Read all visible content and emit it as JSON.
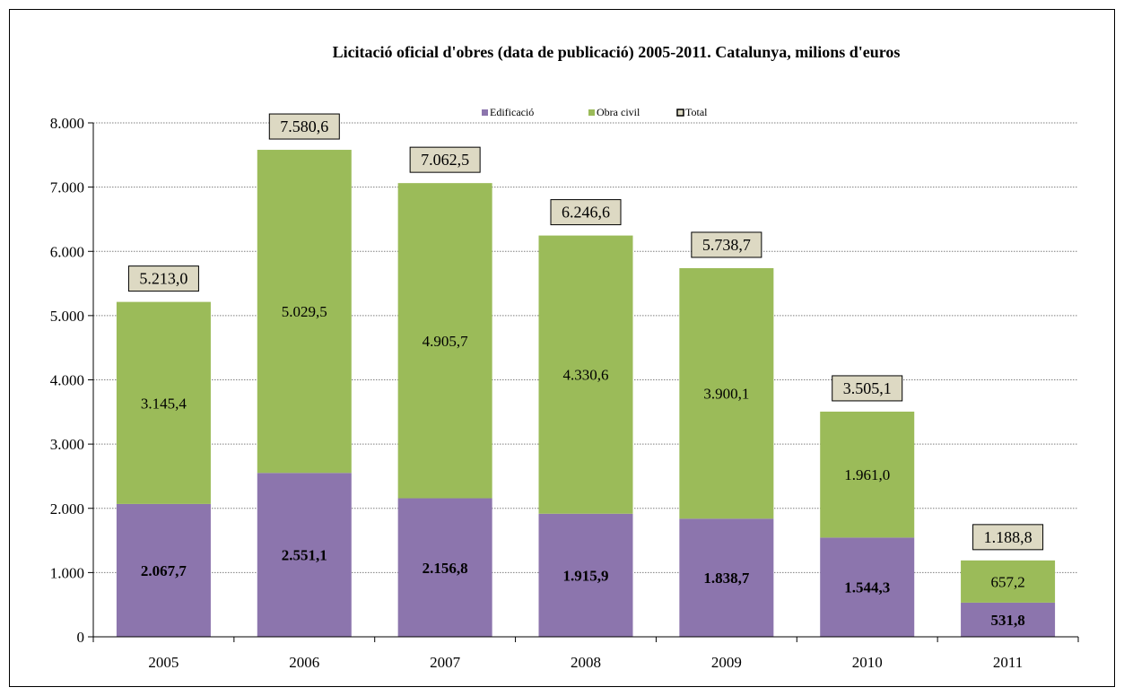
{
  "chart_data": {
    "type": "bar",
    "stacked": true,
    "title": "Licitació oficial d'obres (data de publicació) 2005-2011. Catalunya, milions d'euros",
    "categories": [
      "2005",
      "2006",
      "2007",
      "2008",
      "2009",
      "2010",
      "2011"
    ],
    "series": [
      {
        "name": "Edificació",
        "color": "#8c75ad",
        "values": [
          2067.7,
          2551.1,
          2156.8,
          1915.9,
          1838.7,
          1544.3,
          531.8
        ],
        "labels": [
          "2.067,7",
          "2.551,1",
          "2.156,8",
          "1.915,9",
          "1.838,7",
          "1.544,3",
          "531,8"
        ]
      },
      {
        "name": "Obra civil",
        "color": "#9bbb59",
        "values": [
          3145.4,
          5029.5,
          4905.7,
          4330.6,
          3900.1,
          1961.0,
          657.2
        ],
        "labels": [
          "3.145,4",
          "5.029,5",
          "4.905,7",
          "4.330,6",
          "3.900,1",
          "1.961,0",
          "657,2"
        ]
      }
    ],
    "totals": {
      "name": "Total",
      "values": [
        5213.0,
        7580.6,
        7062.5,
        6246.6,
        5738.7,
        3505.1,
        1188.8
      ],
      "labels": [
        "5.213,0",
        "7.580,6",
        "7.062,5",
        "6.246,6",
        "5.738,7",
        "3.505,1",
        "1.188,8"
      ],
      "box_color": "#ddd9c3"
    },
    "ylim": [
      0,
      8000
    ],
    "yticks": [
      0,
      1000,
      2000,
      3000,
      4000,
      5000,
      6000,
      7000,
      8000
    ],
    "ytick_labels": [
      "0",
      "1.000",
      "2.000",
      "3.000",
      "4.000",
      "5.000",
      "6.000",
      "7.000",
      "8.000"
    ],
    "xlabel": "",
    "ylabel": "",
    "grid": true,
    "grid_style": "dotted",
    "legend_position": "top-center"
  }
}
